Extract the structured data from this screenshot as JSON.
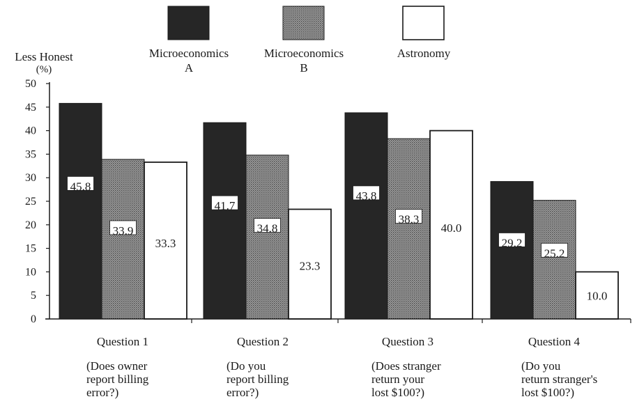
{
  "chart_data": {
    "type": "bar",
    "ylabel_line1": "Less Honest",
    "ylabel_line2": "(%)",
    "ylim": [
      0,
      50
    ],
    "yticks": [
      "0",
      "5",
      "10",
      "15",
      "20",
      "25",
      "30",
      "35",
      "40",
      "45",
      "50"
    ],
    "categories": [
      {
        "label": "Question 1",
        "desc": [
          "(Does owner",
          "report billing",
          "error?)"
        ]
      },
      {
        "label": "Question 2",
        "desc": [
          "(Do you",
          "report billing",
          "error?)"
        ]
      },
      {
        "label": "Question 3",
        "desc": [
          "(Does stranger",
          "return your",
          "lost $100?)"
        ]
      },
      {
        "label": "Question 4",
        "desc": [
          "(Do you",
          "return stranger's",
          "lost $100?)"
        ]
      }
    ],
    "series": [
      {
        "name": "Microeconomics A",
        "legend_lines": [
          "Microeconomics",
          "A"
        ],
        "fill": "solid",
        "color": "#262626",
        "values": [
          45.8,
          41.7,
          43.8,
          29.2
        ],
        "labels": [
          "45.8",
          "41.7",
          "43.8",
          "29.2"
        ]
      },
      {
        "name": "Microeconomics B",
        "legend_lines": [
          "Microeconomics",
          "B"
        ],
        "fill": "dots",
        "color": "#8a8a8a",
        "values": [
          33.9,
          34.8,
          38.3,
          25.2
        ],
        "labels": [
          "33.9",
          "34.8",
          "38.3",
          "25.2"
        ]
      },
      {
        "name": "Astronomy",
        "legend_lines": [
          "Astronomy"
        ],
        "fill": "white",
        "color": "#ffffff",
        "values": [
          33.3,
          23.3,
          40.0,
          10.0
        ],
        "labels": [
          "33.3",
          "23.3",
          "40.0",
          "10.0"
        ]
      }
    ],
    "legend_position": "top",
    "grid": false
  }
}
